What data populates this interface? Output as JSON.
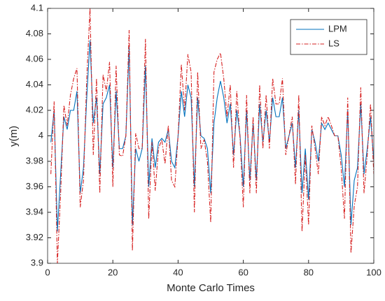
{
  "chart_data": {
    "type": "line",
    "x_label": "Monte Carlo Times",
    "y_label": "y(m)",
    "x": [
      1,
      2,
      3,
      4,
      5,
      6,
      7,
      8,
      9,
      10,
      11,
      12,
      13,
      14,
      15,
      16,
      17,
      18,
      19,
      20,
      21,
      22,
      23,
      24,
      25,
      26,
      27,
      28,
      29,
      30,
      31,
      32,
      33,
      34,
      35,
      36,
      37,
      38,
      39,
      40,
      41,
      42,
      43,
      44,
      45,
      46,
      47,
      48,
      49,
      50,
      51,
      52,
      53,
      54,
      55,
      56,
      57,
      58,
      59,
      60,
      61,
      62,
      63,
      64,
      65,
      66,
      67,
      68,
      69,
      70,
      71,
      72,
      73,
      74,
      75,
      76,
      77,
      78,
      79,
      80,
      81,
      82,
      83,
      84,
      85,
      86,
      87,
      88,
      89,
      90,
      91,
      92,
      93,
      94,
      95,
      96,
      97,
      98,
      99,
      100
    ],
    "series": [
      {
        "name": "LPM",
        "color": "#0072bd",
        "dash": "none",
        "values": [
          3.995,
          4.02,
          3.925,
          3.97,
          4.015,
          4.005,
          4.02,
          4.02,
          4.035,
          3.955,
          3.975,
          4.03,
          4.075,
          4.01,
          4.03,
          3.97,
          4.025,
          4.03,
          4.04,
          3.975,
          4.035,
          3.99,
          3.99,
          4.0,
          4.07,
          3.93,
          3.99,
          3.98,
          3.99,
          4.055,
          3.96,
          3.998,
          3.975,
          3.995,
          3.998,
          3.995,
          4.005,
          3.98,
          3.975,
          4.0,
          4.035,
          4.015,
          4.04,
          4.03,
          3.96,
          4.03,
          4.0,
          3.998,
          3.99,
          3.955,
          4.01,
          4.03,
          4.043,
          4.03,
          4.01,
          4.025,
          3.985,
          4.02,
          4.0,
          3.96,
          4.02,
          3.965,
          4.01,
          3.965,
          4.025,
          3.995,
          4.02,
          3.995,
          4.03,
          4.015,
          4.015,
          4.03,
          3.99,
          4.0,
          4.01,
          3.975,
          4.02,
          3.955,
          3.99,
          3.95,
          4.005,
          3.995,
          3.98,
          4.01,
          4.005,
          4.01,
          4.005,
          4.0,
          4.0,
          3.985,
          3.96,
          4.02,
          3.93,
          3.965,
          3.975,
          4.025,
          3.97,
          3.99,
          4.015,
          3.98
        ]
      },
      {
        "name": "LS",
        "color": "#d62020",
        "dash": "6,2,1.5,2",
        "values": [
          3.97,
          4.027,
          3.9,
          3.955,
          4.024,
          4.008,
          4.032,
          4.045,
          4.053,
          3.944,
          3.965,
          4.045,
          4.1,
          3.985,
          4.045,
          3.955,
          4.048,
          4.035,
          4.058,
          3.96,
          4.055,
          3.985,
          3.984,
          4.0,
          4.083,
          3.91,
          4.002,
          3.99,
          3.99,
          4.076,
          3.935,
          3.995,
          3.957,
          3.99,
          3.997,
          3.978,
          4.008,
          3.965,
          3.96,
          4.0,
          4.056,
          4.02,
          4.064,
          4.05,
          3.94,
          4.05,
          3.99,
          3.997,
          3.98,
          3.932,
          4.05,
          4.06,
          4.065,
          4.045,
          4.015,
          4.04,
          3.975,
          4.035,
          3.998,
          3.944,
          4.032,
          3.955,
          4.015,
          3.955,
          4.04,
          3.99,
          4.032,
          3.99,
          4.045,
          4.025,
          4.025,
          4.045,
          3.985,
          4.0,
          4.015,
          3.962,
          4.032,
          3.925,
          3.985,
          3.93,
          4.008,
          3.99,
          3.97,
          4.015,
          4.008,
          4.015,
          4.008,
          4.0,
          4.0,
          3.975,
          3.935,
          4.03,
          3.908,
          3.945,
          3.96,
          4.038,
          3.955,
          3.985,
          4.025,
          3.97
        ]
      }
    ],
    "xlim": [
      0,
      100
    ],
    "xticks": [
      0,
      20,
      40,
      60,
      80,
      100
    ],
    "ylim": [
      3.9,
      4.1
    ],
    "yticks": [
      3.9,
      3.92,
      3.94,
      3.96,
      3.98,
      4,
      4.02,
      4.04,
      4.06,
      4.08,
      4.1
    ],
    "grid": false,
    "legend": "northeast"
  }
}
